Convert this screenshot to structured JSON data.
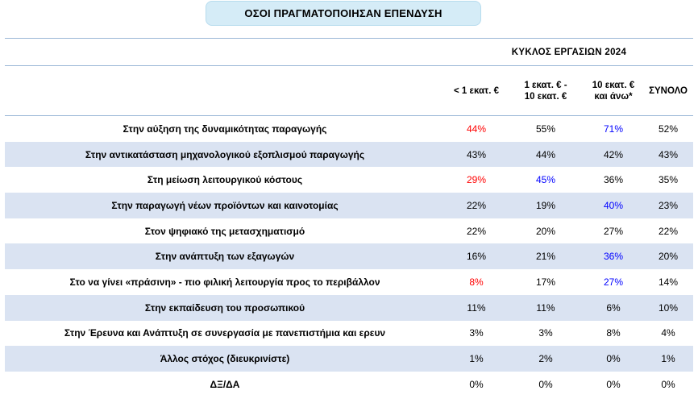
{
  "title": "ΟΣΟΙ ΠΡΑΓΜΑΤΟΠΟΙΗΣΑΝ ΕΠΕΝΔΥΣΗ",
  "cycle_header": "ΚΥΚΛΟΣ ΕΡΓΑΣΙΩΝ 2024",
  "columns": [
    {
      "line1": "< 1 εκατ. €",
      "line2": ""
    },
    {
      "line1": "1 εκατ. € -",
      "line2": "10 εκατ. €"
    },
    {
      "line1": "10 εκατ. €",
      "line2": "και άνω*"
    },
    {
      "line1": "ΣΥΝΟΛΟ",
      "line2": ""
    }
  ],
  "colors": {
    "highlight_low": "#ff0000",
    "highlight_high": "#0000ff",
    "shade": "#dae3f2",
    "title_bg": "#d5ecf7",
    "rule": "#9ab7d6"
  },
  "rows": [
    {
      "label": "Στην αύξηση της δυναμικότητας παραγωγής",
      "values": [
        "44%",
        "55%",
        "71%",
        "52%"
      ],
      "highlights": [
        "low",
        "",
        "high",
        ""
      ]
    },
    {
      "label": "Στην αντικατάσταση μηχανολογικού εξοπλισμού παραγωγής",
      "values": [
        "43%",
        "44%",
        "42%",
        "43%"
      ],
      "highlights": [
        "",
        "",
        "",
        ""
      ]
    },
    {
      "label": "Στη μείωση λειτουργικού κόστους",
      "values": [
        "29%",
        "45%",
        "36%",
        "35%"
      ],
      "highlights": [
        "low",
        "high",
        "",
        ""
      ]
    },
    {
      "label": "Στην παραγωγή νέων προϊόντων και καινοτομίας",
      "values": [
        "22%",
        "19%",
        "40%",
        "23%"
      ],
      "highlights": [
        "",
        "",
        "high",
        ""
      ]
    },
    {
      "label": "Στον ψηφιακό της μετασχηματισμό",
      "values": [
        "22%",
        "20%",
        "27%",
        "22%"
      ],
      "highlights": [
        "",
        "",
        "",
        ""
      ]
    },
    {
      "label": "Στην ανάπτυξη των εξαγωγών",
      "values": [
        "16%",
        "21%",
        "36%",
        "20%"
      ],
      "highlights": [
        "",
        "",
        "high",
        ""
      ]
    },
    {
      "label": "Στο να γίνει «πράσινη» - πιο φιλική λειτουργία προς το περιβάλλον",
      "values": [
        "8%",
        "17%",
        "27%",
        "14%"
      ],
      "highlights": [
        "low",
        "",
        "high",
        ""
      ]
    },
    {
      "label": "Στην εκπαίδευση του προσωπικού",
      "values": [
        "11%",
        "11%",
        "6%",
        "10%"
      ],
      "highlights": [
        "",
        "",
        "",
        ""
      ]
    },
    {
      "label": "Στην Έρευνα και Ανάπτυξη σε συνεργασία με πανεπιστήμια και ερευν",
      "values": [
        "3%",
        "3%",
        "8%",
        "4%"
      ],
      "highlights": [
        "",
        "",
        "",
        ""
      ]
    },
    {
      "label": "Άλλος στόχος (διευκρινίστε)",
      "values": [
        "1%",
        "2%",
        "0%",
        "1%"
      ],
      "highlights": [
        "",
        "",
        "",
        ""
      ]
    },
    {
      "label": "ΔΞ/ΔΑ",
      "values": [
        "0%",
        "0%",
        "0%",
        "0%"
      ],
      "highlights": [
        "",
        "",
        "",
        ""
      ]
    }
  ]
}
